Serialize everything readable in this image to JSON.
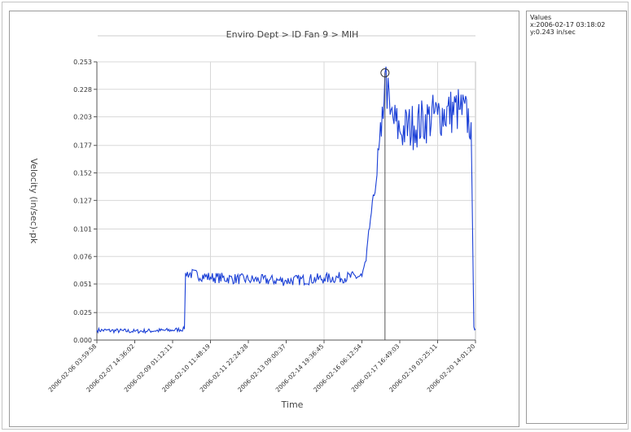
{
  "values_panel": {
    "heading": "Values",
    "x_readout": "x:2006-02-17 03:18:02",
    "y_readout": "y:0.243 in/sec"
  },
  "colors": {
    "series": "#1a3fd6",
    "grid": "#d8d8d8",
    "axis": "#555555"
  },
  "chart_data": {
    "type": "line",
    "title": "Enviro Dept > ID Fan 9 > MIH",
    "xlabel": "Time",
    "ylabel": "Velocity (in/sec)-pk",
    "ylim": [
      0,
      0.253
    ],
    "y_ticks": [
      "0.000",
      "0.025",
      "0.051",
      "0.076",
      "0.101",
      "0.127",
      "0.152",
      "0.177",
      "0.203",
      "0.228",
      "0.253"
    ],
    "x_ticks": [
      "2006-02-06 03:59:58",
      "2006-02-07 14:36:02",
      "2006-02-09 01:12:11",
      "2006-02-10 11:48:19",
      "2006-02-11 22:24:28",
      "2006-02-13 09:00:37",
      "2006-02-14 19:36:45",
      "2006-02-16 06:12:54",
      "2006-02-17 16:49:03",
      "2006-02-19 03:25:11",
      "2006-02-20 14:01:20"
    ],
    "grid": true,
    "legend": "none",
    "selected_point": {
      "x": "2006-02-17 03:18:02",
      "y": 0.243
    },
    "series": [
      {
        "values": [
          {
            "x": "2006-02-06 03:59:58",
            "y": 0.009
          },
          {
            "x": "2006-02-07 14:36:02",
            "y": 0.008
          },
          {
            "x": "2006-02-09 01:12:11",
            "y": 0.009
          },
          {
            "x": "2006-02-09 12:00:00",
            "y": 0.01
          },
          {
            "x": "2006-02-09 13:00:00",
            "y": 0.061
          },
          {
            "x": "2006-02-10 11:48:19",
            "y": 0.057
          },
          {
            "x": "2006-02-11 22:24:28",
            "y": 0.055
          },
          {
            "x": "2006-02-13 09:00:37",
            "y": 0.054
          },
          {
            "x": "2006-02-14 19:36:45",
            "y": 0.056
          },
          {
            "x": "2006-02-16 06:12:54",
            "y": 0.058
          },
          {
            "x": "2006-02-16 10:00:00",
            "y": 0.072
          },
          {
            "x": "2006-02-16 14:00:00",
            "y": 0.11
          },
          {
            "x": "2006-02-16 20:00:00",
            "y": 0.15
          },
          {
            "x": "2006-02-17 00:00:00",
            "y": 0.185
          },
          {
            "x": "2006-02-17 03:18:02",
            "y": 0.243
          },
          {
            "x": "2006-02-17 08:00:00",
            "y": 0.205
          },
          {
            "x": "2006-02-17 16:49:03",
            "y": 0.19
          },
          {
            "x": "2006-02-18 06:00:00",
            "y": 0.195
          },
          {
            "x": "2006-02-19 03:25:11",
            "y": 0.205
          },
          {
            "x": "2006-02-20 00:00:00",
            "y": 0.21
          },
          {
            "x": "2006-02-20 10:00:00",
            "y": 0.198
          },
          {
            "x": "2006-02-20 12:30:00",
            "y": 0.012
          },
          {
            "x": "2006-02-20 14:01:20",
            "y": 0.01
          }
        ]
      }
    ]
  }
}
